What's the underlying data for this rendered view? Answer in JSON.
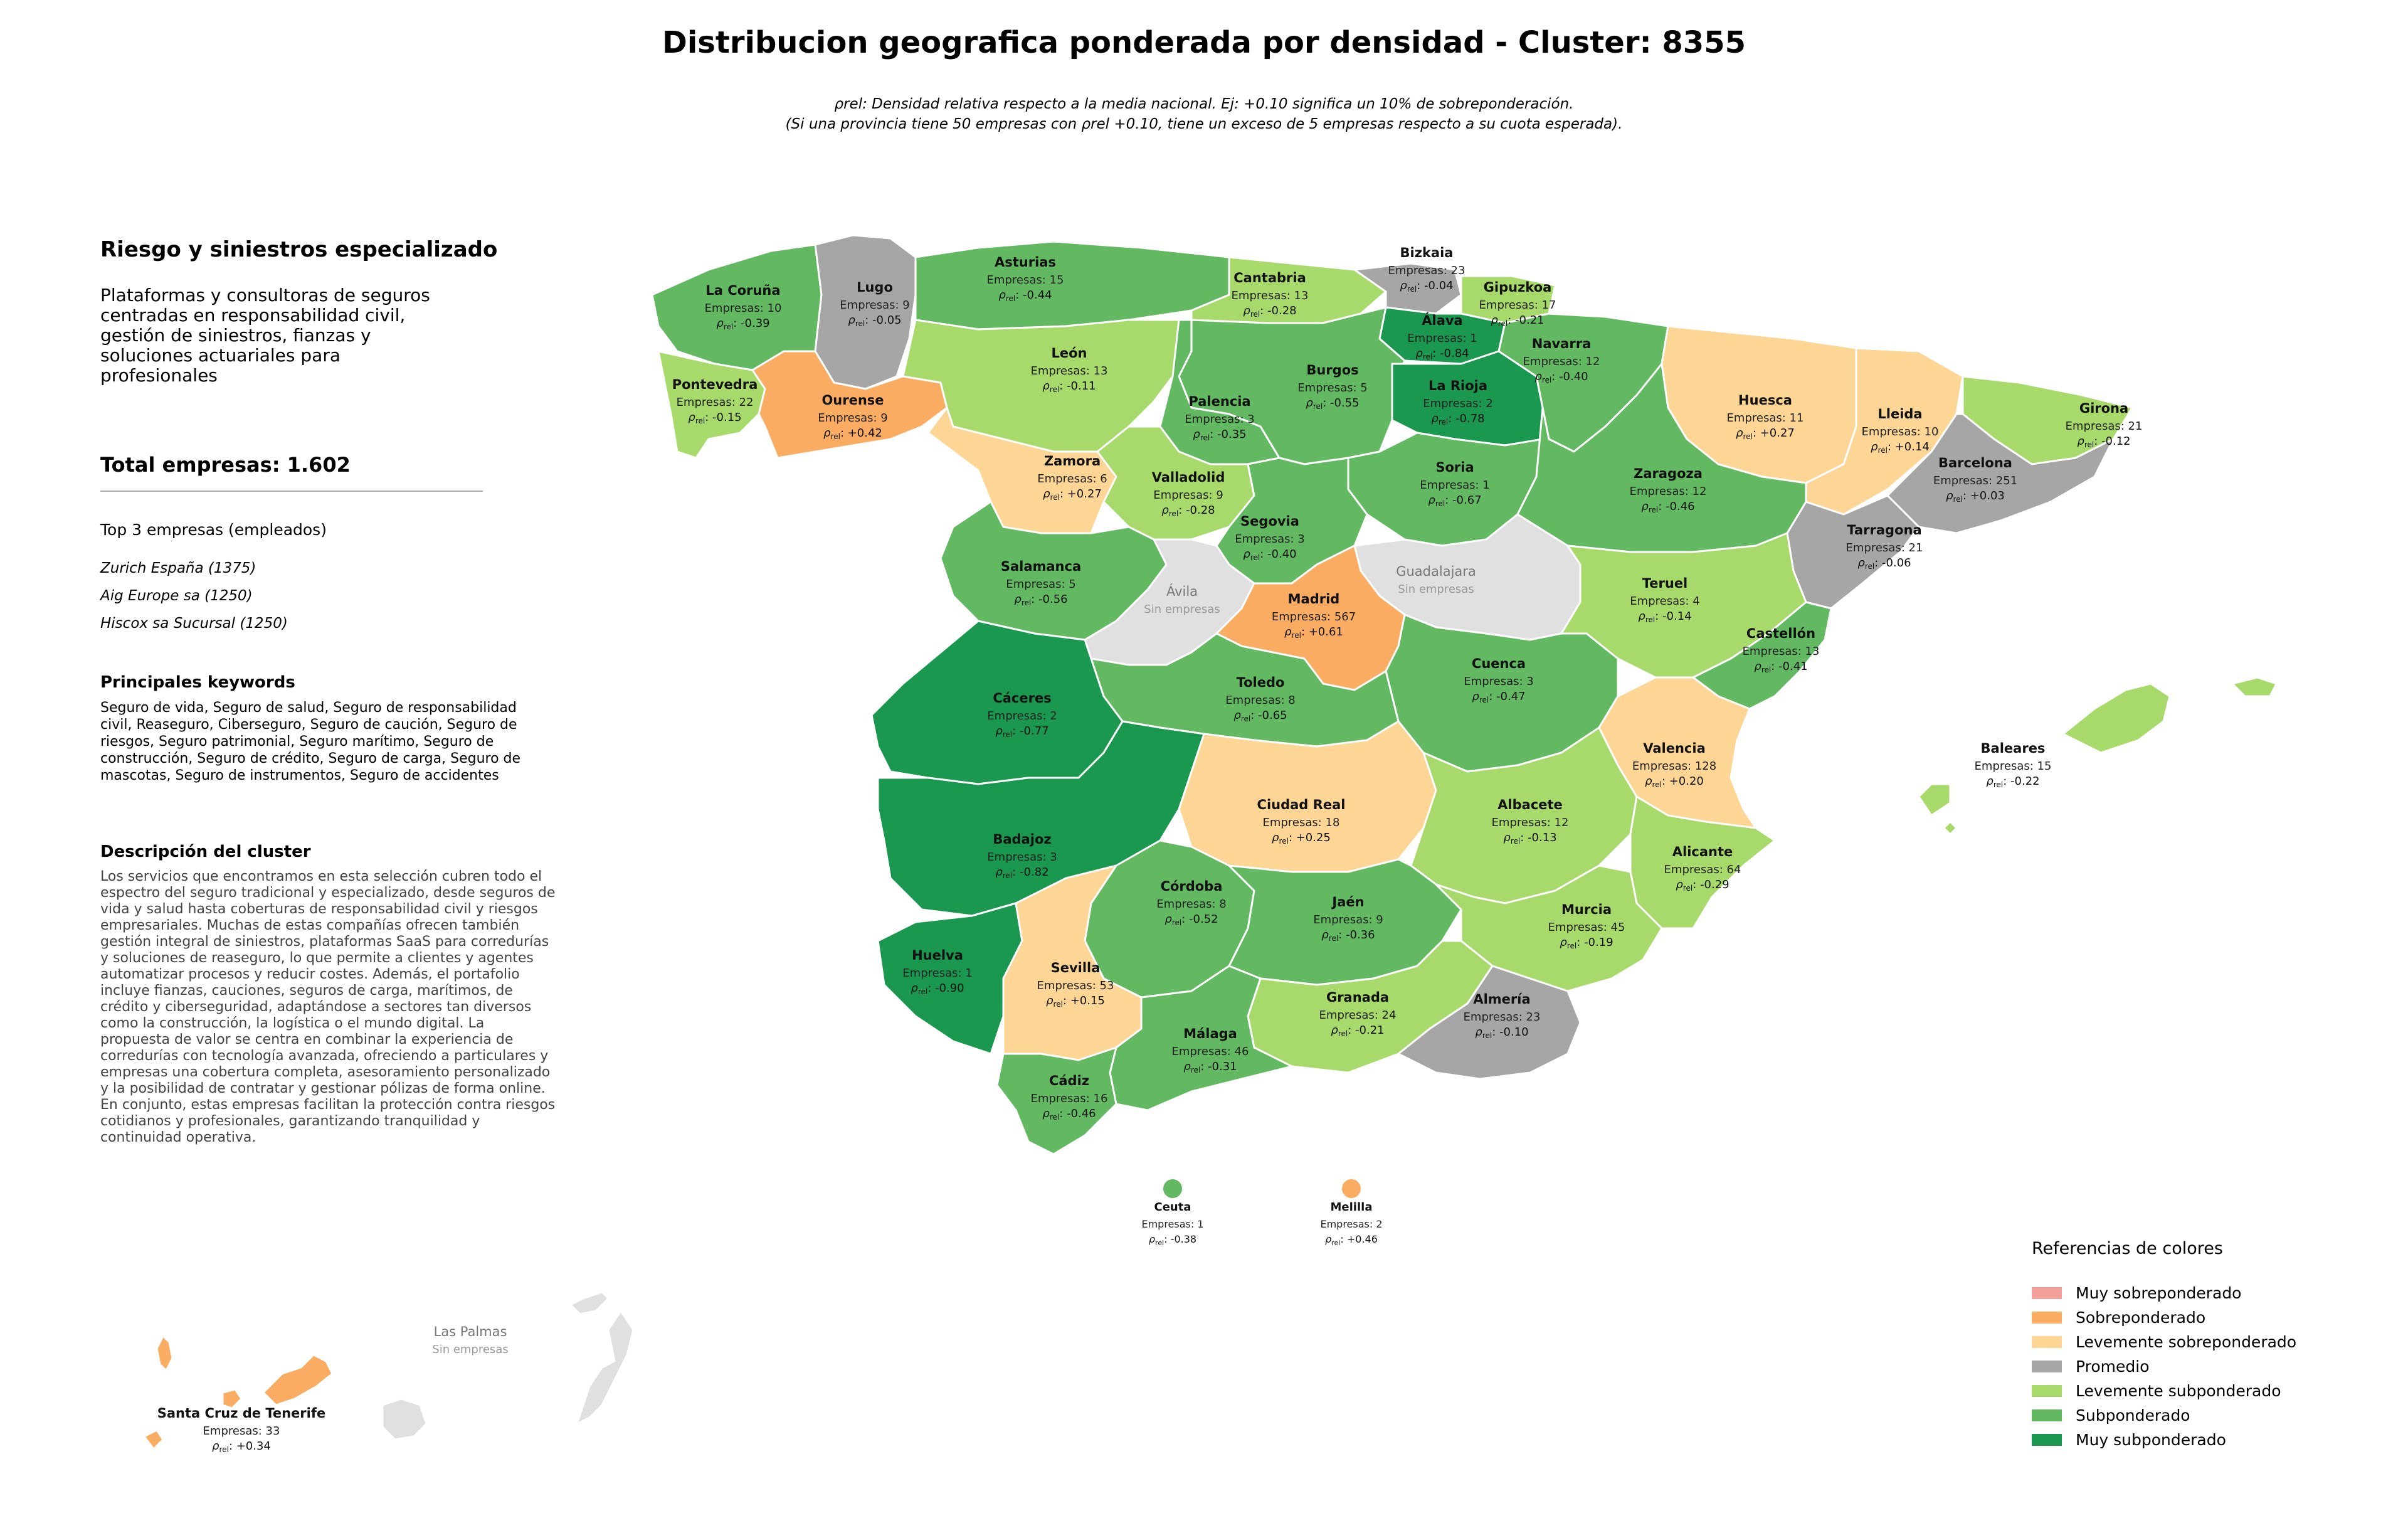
{
  "title": "Distribucion geografica ponderada por densidad - Cluster: 8355",
  "subtitle_line1": "ρrel: Densidad relativa respecto a la media nacional. Ej: +0.10 significa un 10% de sobreponderación.",
  "subtitle_line2": "(Si una provincia tiene 50 empresas con ρrel +0.10, tiene un exceso de 5 empresas respecto a su cuota esperada).",
  "panel": {
    "cluster_name": "Riesgo y siniestros especializado",
    "cluster_summary": "Plataformas y consultoras de seguros centradas en responsabilidad civil, gestión de siniestros, fianzas y soluciones actuariales para profesionales",
    "total": "Total empresas: 1.602",
    "top_heading": "Top 3 empresas (empleados)",
    "top_companies": [
      "Zurich España (1375)",
      "Aig Europe sa (1250)",
      "Hiscox sa Sucursal (1250)"
    ],
    "keywords_heading": "Principales keywords",
    "keywords": "Seguro de vida, Seguro de salud, Seguro de responsabilidad civil, Reaseguro, Ciberseguro, Seguro de caución, Seguro de riesgos, Seguro patrimonial, Seguro marítimo, Seguro de construcción, Seguro de crédito, Seguro de carga, Seguro de mascotas, Seguro de instrumentos, Seguro de accidentes",
    "description_heading": "Descripción del cluster",
    "description": "Los servicios que encontramos en esta selección cubren todo el espectro del seguro tradicional y especializado, desde seguros de vida y salud hasta coberturas de responsabilidad civil y riesgos empresariales. Muchas de estas compañías ofrecen también gestión integral de siniestros, plataformas SaaS para corredurías y soluciones de reaseguro, lo que permite a clientes y agentes automatizar procesos y reducir costes. Además, el portafolio incluye fianzas, cauciones, seguros de carga, marítimos, de crédito y ciberseguridad, adaptándose a sectores tan diversos como la construcción, la logística o el mundo digital. La propuesta de valor se centra en combinar la experiencia de corredurías con tecnología avanzada, ofreciendo a particulares y empresas una cobertura completa, asesoramiento personalizado y la posibilidad de contratar y gestionar pólizas de forma online. En conjunto, estas empresas facilitan la protección contra riesgos cotidianos y profesionales, garantizando tranquilidad y continuidad operativa."
  },
  "colors": {
    "muy_sobre": "#f4a09a",
    "sobre": "#f9ac62",
    "lev_sobre": "#fdd595",
    "promedio": "#a6a6a6",
    "lev_sub": "#a8d96b",
    "sub": "#62b962",
    "muy_sub": "#1a9850",
    "sin": "#e0e0e0",
    "border": "#ffffff"
  },
  "legend": {
    "title": "Referencias de colores",
    "items": [
      {
        "label": "Muy sobreponderado",
        "cat": "muy_sobre"
      },
      {
        "label": "Sobreponderado",
        "cat": "sobre"
      },
      {
        "label": "Levemente sobreponderado",
        "cat": "lev_sobre"
      },
      {
        "label": "Promedio",
        "cat": "promedio"
      },
      {
        "label": "Levemente subponderado",
        "cat": "lev_sub"
      },
      {
        "label": "Subponderado",
        "cat": "sub"
      },
      {
        "label": "Muy subponderado",
        "cat": "muy_sub"
      }
    ]
  },
  "provinces": [
    {
      "name": "La Coruña",
      "empresas": "Empresas: 10",
      "rho": "-0.39",
      "cat": "sub"
    },
    {
      "name": "Lugo",
      "empresas": "Empresas: 9",
      "rho": "-0.05",
      "cat": "promedio"
    },
    {
      "name": "Asturias",
      "empresas": "Empresas: 15",
      "rho": "-0.44",
      "cat": "sub"
    },
    {
      "name": "Cantabria",
      "empresas": "Empresas: 13",
      "rho": "-0.28",
      "cat": "lev_sub"
    },
    {
      "name": "Bizkaia",
      "empresas": "Empresas: 23",
      "rho": "-0.04",
      "cat": "promedio"
    },
    {
      "name": "Gipuzkoa",
      "empresas": "Empresas: 17",
      "rho": "-0.21",
      "cat": "lev_sub"
    },
    {
      "name": "Álava",
      "empresas": "Empresas: 1",
      "rho": "-0.84",
      "cat": "muy_sub"
    },
    {
      "name": "Navarra",
      "empresas": "Empresas: 12",
      "rho": "-0.40",
      "cat": "sub"
    },
    {
      "name": "Pontevedra",
      "empresas": "Empresas: 22",
      "rho": "-0.15",
      "cat": "lev_sub"
    },
    {
      "name": "Ourense",
      "empresas": "Empresas: 9",
      "rho": "+0.42",
      "cat": "sobre"
    },
    {
      "name": "León",
      "empresas": "Empresas: 13",
      "rho": "-0.11",
      "cat": "lev_sub"
    },
    {
      "name": "Burgos",
      "empresas": "Empresas: 5",
      "rho": "-0.55",
      "cat": "sub"
    },
    {
      "name": "La Rioja",
      "empresas": "Empresas: 2",
      "rho": "-0.78",
      "cat": "muy_sub"
    },
    {
      "name": "Palencia",
      "empresas": "Empresas: 3",
      "rho": "-0.35",
      "cat": "sub"
    },
    {
      "name": "Huesca",
      "empresas": "Empresas: 11",
      "rho": "+0.27",
      "cat": "lev_sobre"
    },
    {
      "name": "Lleida",
      "empresas": "Empresas: 10",
      "rho": "+0.14",
      "cat": "lev_sobre"
    },
    {
      "name": "Girona",
      "empresas": "Empresas: 21",
      "rho": "-0.12",
      "cat": "lev_sub"
    },
    {
      "name": "Zamora",
      "empresas": "Empresas: 6",
      "rho": "+0.27",
      "cat": "lev_sobre"
    },
    {
      "name": "Valladolid",
      "empresas": "Empresas: 9",
      "rho": "-0.28",
      "cat": "lev_sub"
    },
    {
      "name": "Soria",
      "empresas": "Empresas: 1",
      "rho": "-0.67",
      "cat": "sub"
    },
    {
      "name": "Zaragoza",
      "empresas": "Empresas: 12",
      "rho": "-0.46",
      "cat": "sub"
    },
    {
      "name": "Barcelona",
      "empresas": "Empresas: 251",
      "rho": "+0.03",
      "cat": "promedio"
    },
    {
      "name": "Segovia",
      "empresas": "Empresas: 3",
      "rho": "-0.40",
      "cat": "sub"
    },
    {
      "name": "Tarragona",
      "empresas": "Empresas: 21",
      "rho": "-0.06",
      "cat": "promedio"
    },
    {
      "name": "Salamanca",
      "empresas": "Empresas: 5",
      "rho": "-0.56",
      "cat": "sub"
    },
    {
      "name": "Ávila",
      "empresas": "Sin empresas",
      "rho": "",
      "cat": "sin"
    },
    {
      "name": "Guadalajara",
      "empresas": "Sin empresas",
      "rho": "",
      "cat": "sin"
    },
    {
      "name": "Madrid",
      "empresas": "Empresas: 567",
      "rho": "+0.61",
      "cat": "sobre"
    },
    {
      "name": "Teruel",
      "empresas": "Empresas: 4",
      "rho": "-0.14",
      "cat": "lev_sub"
    },
    {
      "name": "Castellón",
      "empresas": "Empresas: 13",
      "rho": "-0.41",
      "cat": "sub"
    },
    {
      "name": "Cuenca",
      "empresas": "Empresas: 3",
      "rho": "-0.47",
      "cat": "sub"
    },
    {
      "name": "Toledo",
      "empresas": "Empresas: 8",
      "rho": "-0.65",
      "cat": "sub"
    },
    {
      "name": "Cáceres",
      "empresas": "Empresas: 2",
      "rho": "-0.77",
      "cat": "muy_sub"
    },
    {
      "name": "Valencia",
      "empresas": "Empresas: 128",
      "rho": "+0.20",
      "cat": "lev_sobre"
    },
    {
      "name": "Baleares",
      "empresas": "Empresas: 15",
      "rho": "-0.22",
      "cat": "lev_sub"
    },
    {
      "name": "Ciudad Real",
      "empresas": "Empresas: 18",
      "rho": "+0.25",
      "cat": "lev_sobre"
    },
    {
      "name": "Albacete",
      "empresas": "Empresas: 12",
      "rho": "-0.13",
      "cat": "lev_sub"
    },
    {
      "name": "Badajoz",
      "empresas": "Empresas: 3",
      "rho": "-0.82",
      "cat": "muy_sub"
    },
    {
      "name": "Alicante",
      "empresas": "Empresas: 64",
      "rho": "-0.29",
      "cat": "lev_sub"
    },
    {
      "name": "Córdoba",
      "empresas": "Empresas: 8",
      "rho": "-0.52",
      "cat": "sub"
    },
    {
      "name": "Jaén",
      "empresas": "Empresas: 9",
      "rho": "-0.36",
      "cat": "sub"
    },
    {
      "name": "Murcia",
      "empresas": "Empresas: 45",
      "rho": "-0.19",
      "cat": "lev_sub"
    },
    {
      "name": "Huelva",
      "empresas": "Empresas: 1",
      "rho": "-0.90",
      "cat": "muy_sub"
    },
    {
      "name": "Sevilla",
      "empresas": "Empresas: 53",
      "rho": "+0.15",
      "cat": "lev_sobre"
    },
    {
      "name": "Granada",
      "empresas": "Empresas: 24",
      "rho": "-0.21",
      "cat": "lev_sub"
    },
    {
      "name": "Almería",
      "empresas": "Empresas: 23",
      "rho": "-0.10",
      "cat": "promedio"
    },
    {
      "name": "Málaga",
      "empresas": "Empresas: 46",
      "rho": "-0.31",
      "cat": "sub"
    },
    {
      "name": "Cádiz",
      "empresas": "Empresas: 16",
      "rho": "-0.46",
      "cat": "sub"
    },
    {
      "name": "Ceuta",
      "empresas": "Empresas: 1",
      "rho": "-0.38",
      "cat": "sub"
    },
    {
      "name": "Melilla",
      "empresas": "Empresas: 2",
      "rho": "+0.46",
      "cat": "sobre"
    },
    {
      "name": "Las Palmas",
      "empresas": "Sin empresas",
      "rho": "",
      "cat": "sin"
    },
    {
      "name": "Santa Cruz de Tenerife",
      "empresas": "Empresas: 33",
      "rho": "+0.34",
      "cat": "sobre"
    }
  ]
}
